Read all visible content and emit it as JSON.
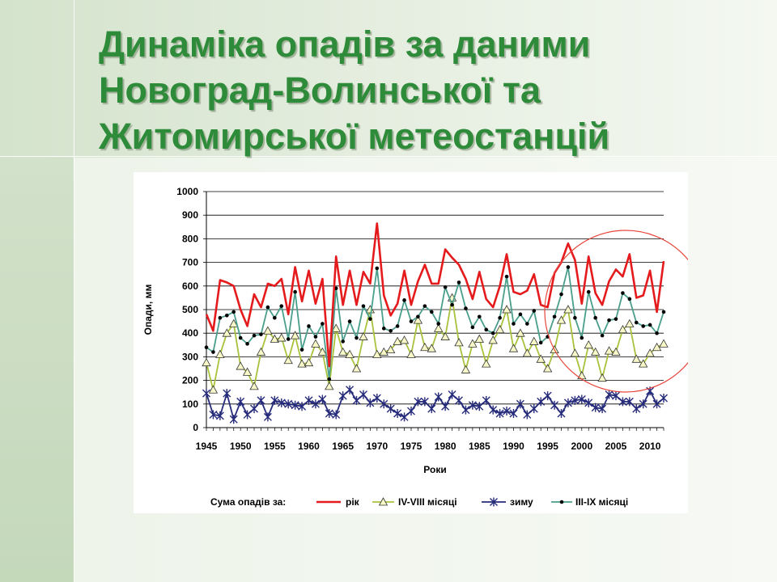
{
  "slide": {
    "title_lines": [
      "Динаміка опадів за даними",
      "Новоград-Волинської та",
      "Житомирської метеостанцій"
    ]
  },
  "chart_data": {
    "type": "line",
    "ylabel": "Опади, мм",
    "xlabel": "Роки",
    "ylim": [
      0,
      1000
    ],
    "yticks": [
      0,
      100,
      200,
      300,
      400,
      500,
      600,
      700,
      800,
      900,
      1000
    ],
    "xlim": [
      1945,
      2012
    ],
    "xticks": [
      1945,
      1950,
      1955,
      1960,
      1965,
      1970,
      1975,
      1980,
      1985,
      1990,
      1995,
      2000,
      2005,
      2010
    ],
    "grid": "horizontal",
    "legend_position": "bottom",
    "legend_prefix": "Сума опадів за:",
    "annotation": "red circle around 1997–2012",
    "x": [
      1945,
      1946,
      1947,
      1948,
      1949,
      1950,
      1951,
      1952,
      1953,
      1954,
      1955,
      1956,
      1957,
      1958,
      1959,
      1960,
      1961,
      1962,
      1963,
      1964,
      1965,
      1966,
      1967,
      1968,
      1969,
      1970,
      1971,
      1972,
      1973,
      1974,
      1975,
      1976,
      1977,
      1978,
      1979,
      1980,
      1981,
      1982,
      1983,
      1984,
      1985,
      1986,
      1987,
      1988,
      1989,
      1990,
      1991,
      1992,
      1993,
      1994,
      1995,
      1996,
      1997,
      1998,
      1999,
      2000,
      2001,
      2002,
      2003,
      2004,
      2005,
      2006,
      2007,
      2008,
      2009,
      2010,
      2011,
      2012
    ],
    "series": [
      {
        "name": "рік",
        "color": "#e41a1c",
        "marker": "none",
        "values": [
          480,
          410,
          625,
          615,
          600,
          500,
          430,
          565,
          510,
          610,
          600,
          630,
          480,
          680,
          535,
          665,
          525,
          630,
          260,
          725,
          520,
          665,
          520,
          660,
          610,
          865,
          560,
          475,
          525,
          665,
          520,
          620,
          690,
          610,
          610,
          755,
          720,
          690,
          630,
          545,
          660,
          545,
          510,
          600,
          735,
          575,
          565,
          580,
          650,
          520,
          510,
          655,
          700,
          780,
          710,
          525,
          725,
          570,
          520,
          620,
          670,
          640,
          735,
          550,
          560,
          665,
          490,
          705
        ]
      },
      {
        "name": "IV-VIII  місяці",
        "color": "#a8c23c",
        "marker": "triangle",
        "values": [
          275,
          160,
          310,
          400,
          440,
          260,
          235,
          175,
          320,
          410,
          375,
          380,
          285,
          390,
          270,
          275,
          355,
          320,
          175,
          420,
          320,
          310,
          250,
          385,
          500,
          310,
          320,
          330,
          365,
          370,
          310,
          455,
          340,
          335,
          420,
          385,
          550,
          360,
          245,
          355,
          375,
          270,
          370,
          415,
          500,
          335,
          400,
          315,
          365,
          290,
          250,
          330,
          455,
          500,
          315,
          220,
          350,
          320,
          210,
          325,
          320,
          415,
          440,
          290,
          270,
          315,
          340,
          355
        ]
      },
      {
        "name": "зиму",
        "color": "#262b7a",
        "marker": "asterisk",
        "values": [
          145,
          55,
          50,
          145,
          35,
          110,
          55,
          80,
          115,
          45,
          115,
          105,
          100,
          95,
          90,
          115,
          100,
          120,
          60,
          55,
          135,
          160,
          115,
          140,
          105,
          125,
          100,
          80,
          60,
          45,
          70,
          110,
          110,
          80,
          130,
          90,
          140,
          115,
          75,
          95,
          90,
          115,
          75,
          60,
          70,
          60,
          100,
          55,
          80,
          110,
          135,
          95,
          60,
          105,
          115,
          120,
          105,
          85,
          80,
          140,
          135,
          110,
          110,
          80,
          100,
          155,
          100,
          125
        ]
      },
      {
        "name": "III-IX місяці",
        "color": "#4a9e8c",
        "marker": "dot",
        "values": [
          340,
          320,
          465,
          475,
          490,
          380,
          355,
          390,
          395,
          510,
          465,
          515,
          375,
          575,
          330,
          430,
          385,
          440,
          205,
          590,
          365,
          450,
          380,
          515,
          460,
          675,
          420,
          410,
          430,
          540,
          450,
          470,
          515,
          490,
          440,
          595,
          520,
          615,
          505,
          425,
          470,
          415,
          400,
          465,
          640,
          440,
          480,
          440,
          495,
          360,
          385,
          470,
          565,
          680,
          465,
          380,
          575,
          465,
          390,
          455,
          460,
          570,
          545,
          445,
          430,
          435,
          400,
          490
        ]
      }
    ]
  }
}
